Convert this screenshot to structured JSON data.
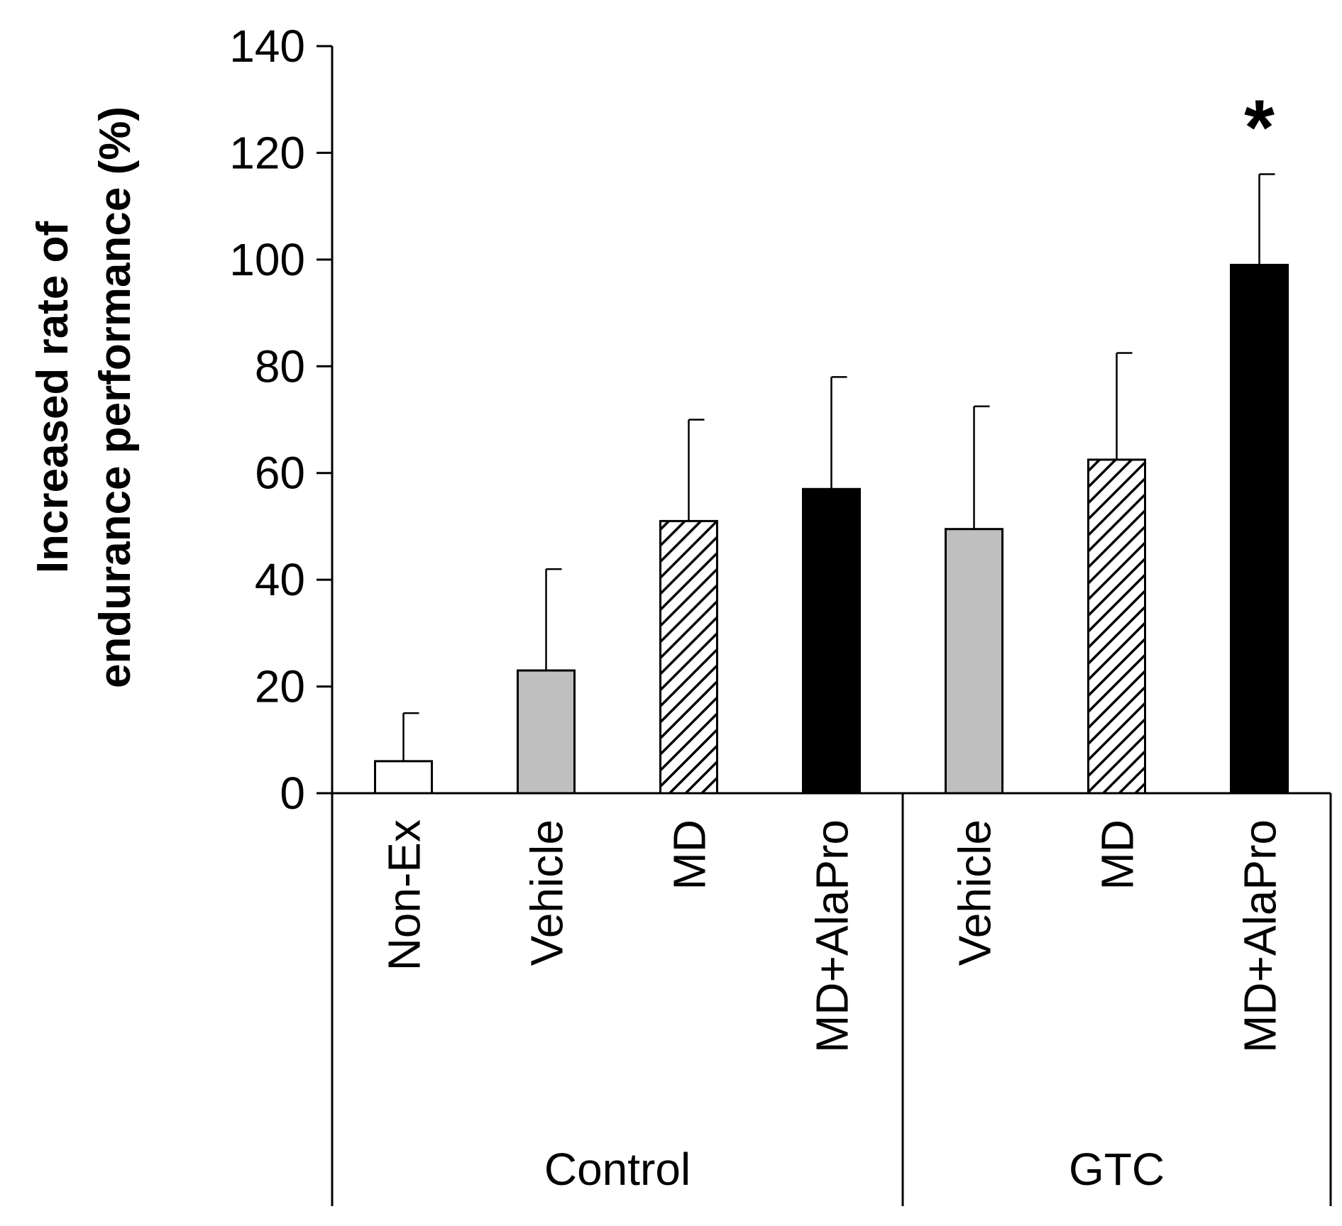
{
  "chart_data": {
    "type": "bar",
    "ylabel_lines": [
      "Increased rate of",
      "endurance performance (%)"
    ],
    "ylim": [
      0,
      140
    ],
    "yticks": [
      "0",
      "20",
      "40",
      "60",
      "80",
      "100",
      "120",
      "140"
    ],
    "groups": [
      {
        "name": "Control",
        "categories": [
          "Non-Ex",
          "Vehicle",
          "MD",
          "MD+AlaPro"
        ]
      },
      {
        "name": "GTC",
        "categories": [
          "Vehicle",
          "MD",
          "MD+AlaPro"
        ]
      }
    ],
    "bars": [
      {
        "group": "Control",
        "category": "Non-Ex",
        "value": 6,
        "error": 9,
        "fill": "white",
        "significance": ""
      },
      {
        "group": "Control",
        "category": "Vehicle",
        "value": 23,
        "error": 19,
        "fill": "gray",
        "significance": ""
      },
      {
        "group": "Control",
        "category": "MD",
        "value": 51,
        "error": 19,
        "fill": "hatched",
        "significance": ""
      },
      {
        "group": "Control",
        "category": "MD+AlaPro",
        "value": 57,
        "error": 21,
        "fill": "black",
        "significance": ""
      },
      {
        "group": "GTC",
        "category": "Vehicle",
        "value": 49.5,
        "error": 23,
        "fill": "gray",
        "significance": ""
      },
      {
        "group": "GTC",
        "category": "MD",
        "value": 62.5,
        "error": 20,
        "fill": "hatched",
        "significance": ""
      },
      {
        "group": "GTC",
        "category": "MD+AlaPro",
        "value": 99,
        "error": 17,
        "fill": "black",
        "significance": "*"
      }
    ],
    "colors": {
      "white": "#ffffff",
      "gray": "#bfbfbf",
      "black": "#000000",
      "hatch": "#000000",
      "axis": "#000000"
    }
  }
}
